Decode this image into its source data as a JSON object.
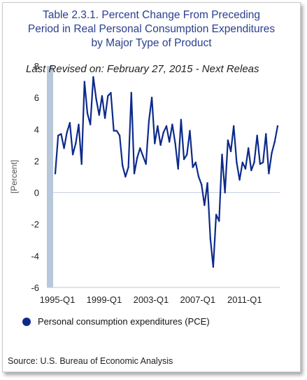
{
  "title_lines": [
    "Table 2.3.1. Percent Change From Preceding",
    "Period in Real Personal Consumption Expenditures",
    "by Major Type of Product"
  ],
  "revised_text": "Last Revised on: February 27, 2015 - Next Releas",
  "source_text": "Source: U.S. Bureau of Economic  Analysis",
  "colors": {
    "line": "#0d2a8a",
    "title": "#2a3f8f",
    "zero_line": "#c9d3e3",
    "axis_bar": "#b8c8dc"
  },
  "chart_data": {
    "type": "line",
    "title": "Table 2.3.1. Percent Change From Preceding Period in Real Personal Consumption Expenditures by Major Type of Product",
    "xlabel": "",
    "ylabel": "[Percent]",
    "ylim": [
      -6,
      8
    ],
    "yticks": [
      -6,
      -4,
      -2,
      0,
      2,
      4,
      6,
      8
    ],
    "xticks": [
      "1995-Q1",
      "1999-Q1",
      "2003-Q1",
      "2007-Q1",
      "2011-Q1"
    ],
    "grid": false,
    "legend_position": "bottom",
    "series": [
      {
        "name": "Personal consumption expenditures (PCE)",
        "start": "1995-Q1",
        "values": [
          1.2,
          3.6,
          3.7,
          2.8,
          3.8,
          4.4,
          2.4,
          3.1,
          4.3,
          1.8,
          7.0,
          5.0,
          4.3,
          7.3,
          5.9,
          4.9,
          6.1,
          4.7,
          6.1,
          6.3,
          3.9,
          3.9,
          3.6,
          1.7,
          1.0,
          1.6,
          6.3,
          1.2,
          2.2,
          2.8,
          2.3,
          1.8,
          4.5,
          6.0,
          3.1,
          4.2,
          3.0,
          3.8,
          4.2,
          3.2,
          4.3,
          3.1,
          1.5,
          4.6,
          2.1,
          2.4,
          3.9,
          1.6,
          1.9,
          1.0,
          0.5,
          -0.8,
          0.6,
          -2.9,
          -4.7,
          -1.4,
          -1.8,
          2.4,
          0.0,
          3.3,
          2.6,
          4.2,
          1.9,
          0.8,
          1.9,
          1.5,
          2.8,
          1.4,
          1.9,
          3.6,
          1.8,
          1.9,
          3.7,
          1.2,
          2.5,
          3.2,
          4.2
        ]
      }
    ]
  }
}
